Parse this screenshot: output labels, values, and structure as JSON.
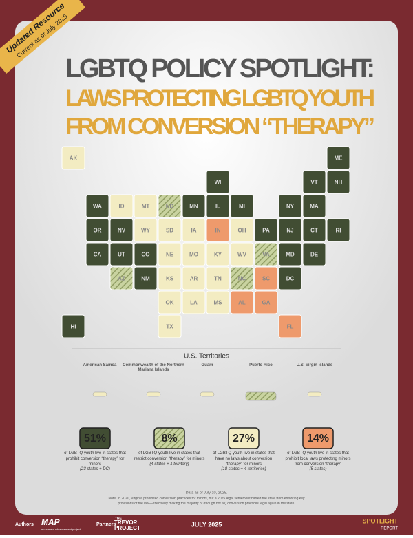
{
  "banner": {
    "title": "Updated Resource",
    "subtitle": "Current as of July 2025"
  },
  "header": {
    "line1": "LGBTQ POLICY SPOTLIGHT:",
    "line2": "LAWS PROTECTING LGBTQ YOUTH",
    "line3": "FROM CONVERSION “THERAPY”"
  },
  "map": {
    "states": [
      {
        "label": "AK",
        "color": "#f3ecc2"
      },
      {
        "label": "ME",
        "color": "#414d33"
      },
      {
        "label": "WI",
        "color": "#414d33"
      },
      {
        "label": "VT",
        "color": "#414d33"
      },
      {
        "label": "NH",
        "color": "#414d33"
      },
      {
        "label": "WA",
        "color": "#414d33"
      },
      {
        "label": "ID",
        "color": "#f3ecc2"
      },
      {
        "label": "MT",
        "color": "#f3ecc2"
      },
      {
        "label": "ND",
        "color": "#b9c48f",
        "hatched": true
      },
      {
        "label": "MN",
        "color": "#414d33"
      },
      {
        "label": "IL",
        "color": "#414d33"
      },
      {
        "label": "MI",
        "color": "#414d33"
      },
      {
        "label": "NY",
        "color": "#414d33"
      },
      {
        "label": "MA",
        "color": "#414d33"
      },
      {
        "label": "OR",
        "color": "#414d33"
      },
      {
        "label": "NV",
        "color": "#414d33"
      },
      {
        "label": "WY",
        "color": "#f3ecc2"
      },
      {
        "label": "SD",
        "color": "#f3ecc2"
      },
      {
        "label": "IA",
        "color": "#f3ecc2"
      },
      {
        "label": "IN",
        "color": "#ee9a6c"
      },
      {
        "label": "OH",
        "color": "#f3ecc2"
      },
      {
        "label": "PA",
        "color": "#414d33"
      },
      {
        "label": "NJ",
        "color": "#414d33"
      },
      {
        "label": "CT",
        "color": "#414d33"
      },
      {
        "label": "RI",
        "color": "#414d33"
      },
      {
        "label": "CA",
        "color": "#414d33"
      },
      {
        "label": "UT",
        "color": "#414d33"
      },
      {
        "label": "CO",
        "color": "#414d33"
      },
      {
        "label": "NE",
        "color": "#f3ecc2"
      },
      {
        "label": "MO",
        "color": "#f3ecc2"
      },
      {
        "label": "KY",
        "color": "#f3ecc2"
      },
      {
        "label": "WV",
        "color": "#f3ecc2"
      },
      {
        "label": "VA",
        "color": "#b9c48f",
        "hatched": true
      },
      {
        "label": "MD",
        "color": "#414d33"
      },
      {
        "label": "DE",
        "color": "#414d33"
      },
      {
        "label": "AZ",
        "color": "#b9c48f",
        "hatched": true
      },
      {
        "label": "NM",
        "color": "#414d33"
      },
      {
        "label": "KS",
        "color": "#f3ecc2"
      },
      {
        "label": "AR",
        "color": "#f3ecc2"
      },
      {
        "label": "TN",
        "color": "#f3ecc2"
      },
      {
        "label": "NC",
        "color": "#b9c48f",
        "hatched": true
      },
      {
        "label": "SC",
        "color": "#ee9a6c"
      },
      {
        "label": "DC",
        "color": "#414d33"
      },
      {
        "label": "OK",
        "color": "#f3ecc2"
      },
      {
        "label": "LA",
        "color": "#f3ecc2"
      },
      {
        "label": "MS",
        "color": "#f3ecc2"
      },
      {
        "label": "AL",
        "color": "#ee9a6c"
      },
      {
        "label": "GA",
        "color": "#ee9a6c"
      },
      {
        "label": "HI",
        "color": "#414d33"
      },
      {
        "label": "TX",
        "color": "#f3ecc2"
      },
      {
        "label": "FL",
        "color": "#ee9a6c"
      }
    ]
  },
  "territories": {
    "title": "U.S. Territories",
    "items": [
      {
        "name": "American Samoa",
        "color": "#f3ecc2"
      },
      {
        "name": "Commonwealth of the Northern Mariana Islands",
        "color": "#f3ecc2"
      },
      {
        "name": "Guam",
        "color": "#f3ecc2"
      },
      {
        "name": "Puerto Rico",
        "color": "#b9c48f",
        "hatched": true
      },
      {
        "name": "U.S. Virgin Islands",
        "color": "#f3ecc2"
      }
    ]
  },
  "stats": [
    {
      "value": "51%",
      "text": "of LGBTQ youth live in states that prohibit conversion “therapy” for minors",
      "note": "(23 states + DC)",
      "color": "#414d33",
      "text_color": "#ffffff"
    },
    {
      "value": "8%",
      "text": "of LGBTQ youth live in states that restrict conversion “therapy” for minors",
      "note": "(4 states + 1 territory)",
      "color": "#b9c48f",
      "hatched": true,
      "text_color": "#ffffff"
    },
    {
      "value": "27%",
      "text": "of LGBTQ youth live in states that have no laws about conversion “therapy” for minors",
      "note": "(18 states + 4 territories)",
      "color": "#f3ecc2",
      "text_color": "#333333"
    },
    {
      "value": "14%",
      "text": "of LGBTQ youth live in states that prohibit local laws protecting minors from conversion “therapy”",
      "note": "(5 states)",
      "color": "#ee9a6c",
      "text_color": "#ffffff"
    }
  ],
  "notes": {
    "date": "Data as of July 10, 2025.",
    "note": "Note: In 2020, Virginia prohibited conversion practices for minors, but a 2025 legal settlement barred the state from enforcing key provisions of the law—effectively making the majority of (though not all) conversion practices legal again in the state."
  },
  "footer": {
    "authors_label": "Authors",
    "authors": "MAP",
    "authors_sub": "movement advancement project",
    "partners_label": "Partners",
    "partners_pre": "THE",
    "partners": "TREVOR PROJECT",
    "date": "JULY 2025",
    "brand": "SPOTLIGHT",
    "brand_sub": "REPORT"
  }
}
